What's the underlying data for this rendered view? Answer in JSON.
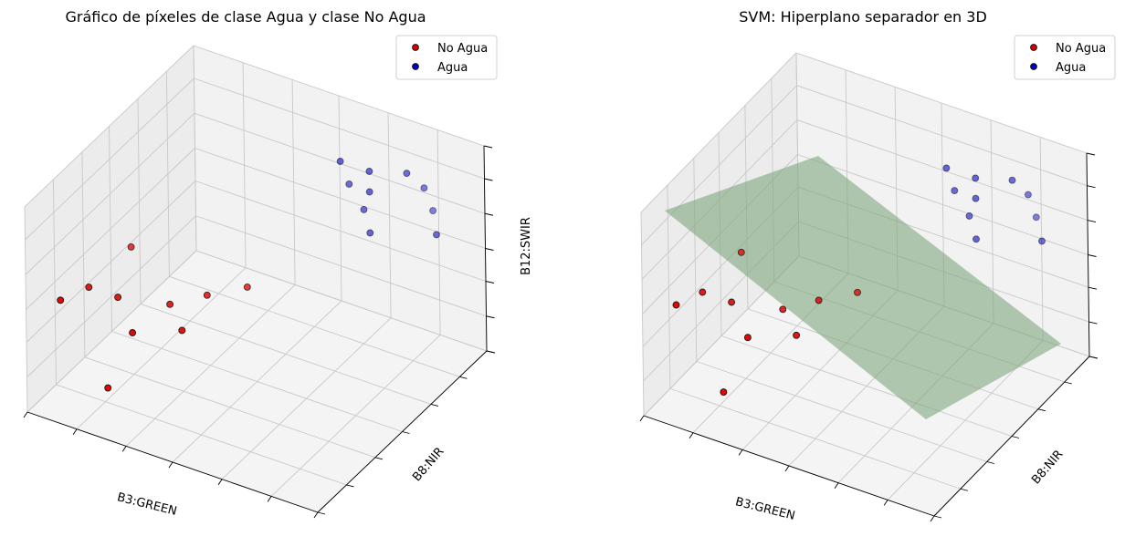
{
  "colors": {
    "no_agua": "#e00000",
    "agua": "#0000c8",
    "edge": "#111111",
    "hyperplane": "#7fa77f",
    "pane_left": "#ececec",
    "pane_right": "#f2f2f2",
    "pane_floor": "#f4f4f4",
    "grid": "#c8c8c8"
  },
  "chart_data": [
    {
      "type": "scatter",
      "projection": "3d",
      "title": "Gráfico de píxeles de clase Agua y clase No Agua",
      "xlabel": "B3:GREEN",
      "ylabel": "B8:NIR",
      "zlabel": "B12:SWIR",
      "tick_labels_shown": false,
      "legend": {
        "placement": "top-right",
        "entries": [
          "No Agua",
          "Agua"
        ]
      },
      "grid": true,
      "series": [
        {
          "name": "No Agua",
          "color": "#e00000",
          "points": [
            {
              "x": 0.09,
              "y": 0.05,
              "z": 0.55
            },
            {
              "x": 0.1,
              "y": 0.2,
              "z": 0.5
            },
            {
              "x": 0.2,
              "y": 0.2,
              "z": 0.5
            },
            {
              "x": 0.1,
              "y": 0.45,
              "z": 0.5
            },
            {
              "x": 0.35,
              "y": 0.25,
              "z": 0.5
            },
            {
              "x": 0.45,
              "y": 0.15,
              "z": 0.5
            },
            {
              "x": 0.5,
              "y": 0.45,
              "z": 0.5
            },
            {
              "x": 0.32,
              "y": 0.08,
              "z": 0.48
            },
            {
              "x": 0.42,
              "y": 0.35,
              "z": 0.5
            },
            {
              "x": 0.25,
              "y": 0.05,
              "z": 0.2
            }
          ]
        },
        {
          "name": "Agua",
          "color": "#0000c8",
          "points": [
            {
              "x": 0.65,
              "y": 0.75,
              "z": 0.95
            },
            {
              "x": 0.75,
              "y": 0.75,
              "z": 0.95
            },
            {
              "x": 0.85,
              "y": 0.8,
              "z": 0.95
            },
            {
              "x": 0.75,
              "y": 0.75,
              "z": 0.85
            },
            {
              "x": 0.65,
              "y": 0.8,
              "z": 0.8
            },
            {
              "x": 0.85,
              "y": 0.9,
              "z": 0.8
            },
            {
              "x": 0.7,
              "y": 0.8,
              "z": 0.7
            },
            {
              "x": 0.85,
              "y": 0.95,
              "z": 0.65
            },
            {
              "x": 0.75,
              "y": 0.75,
              "z": 0.65
            },
            {
              "x": 0.95,
              "y": 0.8,
              "z": 0.7
            }
          ]
        }
      ]
    },
    {
      "type": "scatter",
      "projection": "3d",
      "title": "SVM: Hiperplano separador en 3D",
      "xlabel": "B3:GREEN",
      "ylabel": "B8:NIR",
      "zlabel": "",
      "tick_labels_shown": false,
      "legend": {
        "placement": "top-right",
        "entries": [
          "No Agua",
          "Agua"
        ]
      },
      "grid": true,
      "surface": {
        "name": "hyperplane",
        "color": "#7fa77f",
        "opacity": 0.6
      },
      "series": [
        {
          "name": "No Agua",
          "color": "#e00000",
          "points": [
            {
              "x": 0.09,
              "y": 0.05,
              "z": 0.55
            },
            {
              "x": 0.1,
              "y": 0.2,
              "z": 0.5
            },
            {
              "x": 0.2,
              "y": 0.2,
              "z": 0.5
            },
            {
              "x": 0.1,
              "y": 0.45,
              "z": 0.5
            },
            {
              "x": 0.35,
              "y": 0.25,
              "z": 0.5
            },
            {
              "x": 0.45,
              "y": 0.15,
              "z": 0.5
            },
            {
              "x": 0.5,
              "y": 0.45,
              "z": 0.5
            },
            {
              "x": 0.32,
              "y": 0.08,
              "z": 0.48
            },
            {
              "x": 0.42,
              "y": 0.35,
              "z": 0.5
            },
            {
              "x": 0.25,
              "y": 0.05,
              "z": 0.2
            }
          ]
        },
        {
          "name": "Agua",
          "color": "#0000c8",
          "points": [
            {
              "x": 0.65,
              "y": 0.75,
              "z": 0.95
            },
            {
              "x": 0.75,
              "y": 0.75,
              "z": 0.95
            },
            {
              "x": 0.85,
              "y": 0.8,
              "z": 0.95
            },
            {
              "x": 0.75,
              "y": 0.75,
              "z": 0.85
            },
            {
              "x": 0.65,
              "y": 0.8,
              "z": 0.8
            },
            {
              "x": 0.85,
              "y": 0.9,
              "z": 0.8
            },
            {
              "x": 0.7,
              "y": 0.8,
              "z": 0.7
            },
            {
              "x": 0.85,
              "y": 0.95,
              "z": 0.65
            },
            {
              "x": 0.75,
              "y": 0.75,
              "z": 0.65
            },
            {
              "x": 0.95,
              "y": 0.8,
              "z": 0.7
            }
          ]
        }
      ]
    }
  ]
}
